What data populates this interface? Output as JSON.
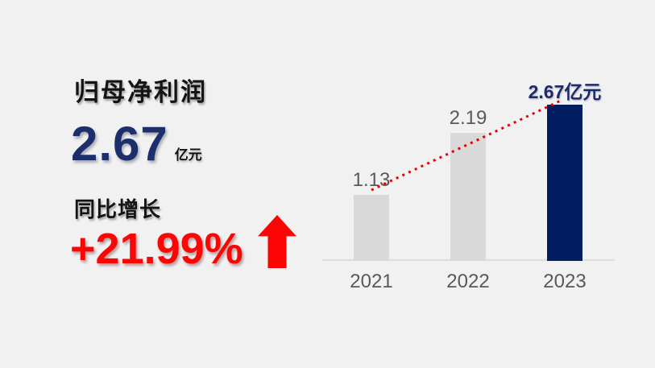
{
  "page": {
    "background": "#f1f1f2"
  },
  "left_panel": {
    "title": "归母净利润",
    "value": "2.67",
    "unit": "亿元",
    "growth_label": "同比增长",
    "growth_value": "+21.99%"
  },
  "colors": {
    "navy_text": "#1c2e6b",
    "navy_bar": "#021d62",
    "red": "#fb0505",
    "trend_red": "#e60000",
    "gray_bar": "#d9d9d9",
    "gray_text": "#595959",
    "axis": "#dcdcdc"
  },
  "icons": {
    "growth_arrow": "up-arrow"
  },
  "chart_data": {
    "type": "bar",
    "title": "",
    "xlabel": "",
    "ylabel": "",
    "categories": [
      "2021",
      "2022",
      "2023"
    ],
    "values": [
      1.13,
      2.19,
      2.67
    ],
    "bar_labels": [
      "1.13",
      "2.19",
      "2.67亿元"
    ],
    "unit": "亿元",
    "ylim": [
      0,
      2.8
    ],
    "grid": false,
    "legend": "none",
    "bar_colors": [
      "#d9d9d9",
      "#d9d9d9",
      "#021d62"
    ],
    "label_colors": [
      "#595959",
      "#595959",
      "#1b2a6b"
    ],
    "highlight_index": 2,
    "trend_line": {
      "style": "dotted",
      "color": "#e60000",
      "from_category": "2021",
      "to_category": "2023"
    }
  }
}
